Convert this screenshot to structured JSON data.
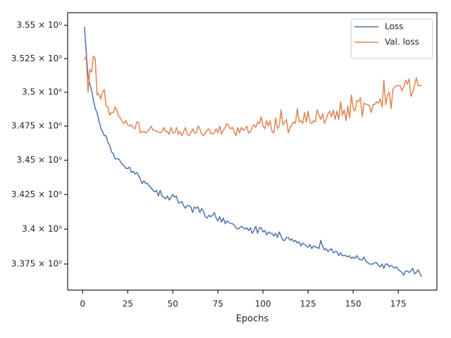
{
  "chart_data": {
    "type": "line",
    "xlabel": "Epochs",
    "yscale": "log",
    "legend": "upper right",
    "xlim": [
      -8.3,
      196.4
    ],
    "xticks": [
      0,
      25,
      50,
      75,
      100,
      125,
      150,
      175
    ],
    "ylim": [
      3.3564,
      3.5595
    ],
    "yticks": [
      {
        "value": 3.375,
        "label": "3.375 × 10⁰"
      },
      {
        "value": 3.4,
        "label": "3.4 × 10⁰"
      },
      {
        "value": 3.425,
        "label": "3.425 × 10⁰"
      },
      {
        "value": 3.45,
        "label": "3.45 × 10⁰"
      },
      {
        "value": 3.475,
        "label": "3.475 × 10⁰"
      },
      {
        "value": 3.5,
        "label": "3.5 × 10⁰"
      },
      {
        "value": 3.525,
        "label": "3.525 × 10⁰"
      },
      {
        "value": 3.55,
        "label": "3.55 × 10⁰"
      }
    ],
    "x": [
      1,
      2,
      3,
      4,
      5,
      6,
      7,
      8,
      9,
      10,
      11,
      12,
      13,
      14,
      15,
      16,
      17,
      18,
      19,
      20,
      21,
      22,
      23,
      24,
      25,
      26,
      27,
      28,
      29,
      30,
      31,
      32,
      33,
      34,
      35,
      36,
      37,
      38,
      39,
      40,
      41,
      42,
      43,
      44,
      45,
      46,
      47,
      48,
      49,
      50,
      51,
      52,
      53,
      54,
      55,
      56,
      57,
      58,
      59,
      60,
      61,
      62,
      63,
      64,
      65,
      66,
      67,
      68,
      69,
      70,
      71,
      72,
      73,
      74,
      75,
      76,
      77,
      78,
      79,
      80,
      81,
      82,
      83,
      84,
      85,
      86,
      87,
      88,
      89,
      90,
      91,
      92,
      93,
      94,
      95,
      96,
      97,
      98,
      99,
      100,
      101,
      102,
      103,
      104,
      105,
      106,
      107,
      108,
      109,
      110,
      111,
      112,
      113,
      114,
      115,
      116,
      117,
      118,
      119,
      120,
      121,
      122,
      123,
      124,
      125,
      126,
      127,
      128,
      129,
      130,
      131,
      132,
      133,
      134,
      135,
      136,
      137,
      138,
      139,
      140,
      141,
      142,
      143,
      144,
      145,
      146,
      147,
      148,
      149,
      150,
      151,
      152,
      153,
      154,
      155,
      156,
      157,
      158,
      159,
      160,
      161,
      162,
      163,
      164,
      165,
      166,
      167,
      168,
      169,
      170,
      171,
      172,
      173,
      174,
      175,
      176,
      177,
      178,
      179,
      180,
      181,
      182,
      183,
      184,
      185,
      186,
      187,
      188
    ],
    "series": [
      {
        "name": "Loss",
        "color": "#4c72b0",
        "values": [
          3.549,
          3.53,
          3.512,
          3.506,
          3.501,
          3.494,
          3.488,
          3.485,
          3.479,
          3.474,
          3.471,
          3.468,
          3.468,
          3.463,
          3.461,
          3.456,
          3.455,
          3.451,
          3.451,
          3.451,
          3.449,
          3.447,
          3.446,
          3.444,
          3.444,
          3.445,
          3.441,
          3.442,
          3.44,
          3.441,
          3.439,
          3.436,
          3.433,
          3.435,
          3.433,
          3.433,
          3.431,
          3.43,
          3.428,
          3.427,
          3.428,
          3.424,
          3.428,
          3.424,
          3.423,
          3.422,
          3.424,
          3.421,
          3.423,
          3.425,
          3.423,
          3.424,
          3.419,
          3.419,
          3.42,
          3.417,
          3.415,
          3.417,
          3.417,
          3.416,
          3.412,
          3.416,
          3.415,
          3.416,
          3.412,
          3.415,
          3.413,
          3.409,
          3.408,
          3.41,
          3.409,
          3.41,
          3.412,
          3.408,
          3.406,
          3.409,
          3.405,
          3.408,
          3.404,
          3.406,
          3.405,
          3.404,
          3.404,
          3.403,
          3.401,
          3.4,
          3.401,
          3.402,
          3.401,
          3.4,
          3.401,
          3.399,
          3.401,
          3.397,
          3.399,
          3.402,
          3.397,
          3.401,
          3.401,
          3.398,
          3.399,
          3.396,
          3.398,
          3.397,
          3.397,
          3.395,
          3.397,
          3.394,
          3.398,
          3.395,
          3.392,
          3.392,
          3.394,
          3.394,
          3.392,
          3.393,
          3.391,
          3.392,
          3.39,
          3.391,
          3.388,
          3.39,
          3.389,
          3.388,
          3.387,
          3.389,
          3.386,
          3.388,
          3.387,
          3.387,
          3.386,
          3.392,
          3.388,
          3.385,
          3.386,
          3.384,
          3.385,
          3.386,
          3.383,
          3.384,
          3.384,
          3.381,
          3.383,
          3.381,
          3.381,
          3.381,
          3.38,
          3.381,
          3.379,
          3.38,
          3.379,
          3.381,
          3.379,
          3.378,
          3.378,
          3.38,
          3.377,
          3.376,
          3.375,
          3.375,
          3.375,
          3.376,
          3.376,
          3.374,
          3.373,
          3.375,
          3.372,
          3.375,
          3.375,
          3.373,
          3.374,
          3.373,
          3.372,
          3.373,
          3.371,
          3.37,
          3.369,
          3.367,
          3.37,
          3.37,
          3.369,
          3.37,
          3.372,
          3.368,
          3.369,
          3.371,
          3.368,
          3.366
        ]
      },
      {
        "name": "Val. loss",
        "color": "#dd8452",
        "values": [
          3.524,
          3.527,
          3.5,
          3.517,
          3.515,
          3.527,
          3.525,
          3.498,
          3.499,
          3.495,
          3.5,
          3.502,
          3.49,
          3.489,
          3.483,
          3.485,
          3.485,
          3.489,
          3.487,
          3.482,
          3.481,
          3.478,
          3.477,
          3.479,
          3.476,
          3.475,
          3.476,
          3.474,
          3.473,
          3.478,
          3.478,
          3.47,
          3.471,
          3.471,
          3.47,
          3.471,
          3.473,
          3.475,
          3.472,
          3.472,
          3.471,
          3.471,
          3.47,
          3.471,
          3.474,
          3.471,
          3.471,
          3.469,
          3.474,
          3.47,
          3.47,
          3.474,
          3.469,
          3.471,
          3.468,
          3.471,
          3.474,
          3.469,
          3.468,
          3.47,
          3.473,
          3.47,
          3.47,
          3.475,
          3.473,
          3.469,
          3.468,
          3.47,
          3.472,
          3.473,
          3.47,
          3.469,
          3.47,
          3.473,
          3.47,
          3.475,
          3.469,
          3.472,
          3.474,
          3.477,
          3.475,
          3.473,
          3.474,
          3.471,
          3.468,
          3.474,
          3.47,
          3.474,
          3.472,
          3.473,
          3.475,
          3.47,
          3.471,
          3.474,
          3.476,
          3.474,
          3.478,
          3.477,
          3.482,
          3.475,
          3.473,
          3.479,
          3.475,
          3.479,
          3.471,
          3.47,
          3.481,
          3.473,
          3.475,
          3.487,
          3.476,
          3.478,
          3.48,
          3.47,
          3.474,
          3.476,
          3.478,
          3.477,
          3.488,
          3.478,
          3.479,
          3.477,
          3.485,
          3.478,
          3.486,
          3.478,
          3.477,
          3.479,
          3.478,
          3.487,
          3.483,
          3.48,
          3.484,
          3.477,
          3.48,
          3.484,
          3.486,
          3.482,
          3.487,
          3.48,
          3.486,
          3.48,
          3.493,
          3.483,
          3.487,
          3.479,
          3.49,
          3.481,
          3.498,
          3.488,
          3.486,
          3.494,
          3.493,
          3.496,
          3.482,
          3.492,
          3.491,
          3.491,
          3.49,
          3.485,
          3.491,
          3.491,
          3.493,
          3.492,
          3.495,
          3.489,
          3.509,
          3.491,
          3.498,
          3.5,
          3.488,
          3.502,
          3.504,
          3.505,
          3.505,
          3.505,
          3.501,
          3.504,
          3.509,
          3.506,
          3.51,
          3.497,
          3.5,
          3.505,
          3.511,
          3.505,
          3.505,
          3.505
        ]
      }
    ]
  }
}
